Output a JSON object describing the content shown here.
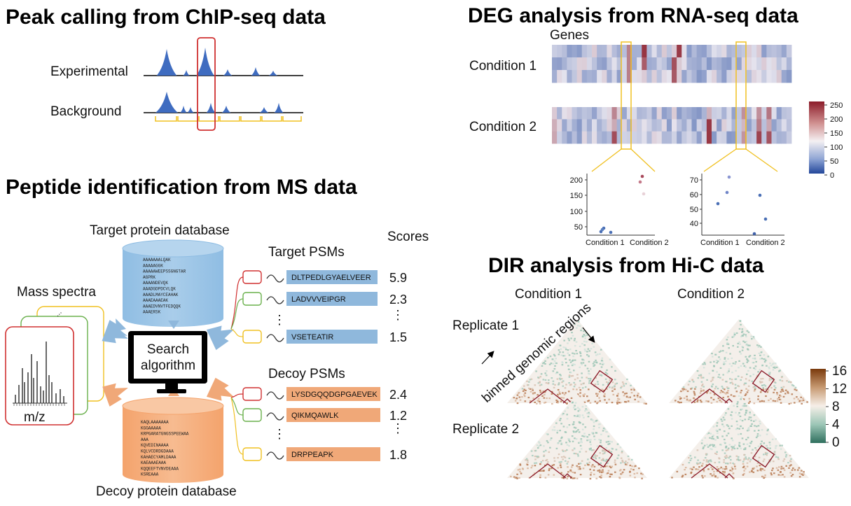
{
  "sections": {
    "chip": {
      "title": "Peak calling from ChIP-seq data",
      "experimental_label": "Experimental",
      "background_label": "Background"
    },
    "deg": {
      "title": "DEG analysis from RNA-seq data",
      "genes_label": "Genes",
      "condition1_label": "Condition 1",
      "condition2_label": "Condition 2",
      "colorbar_ticks": [
        "250",
        "200",
        "150",
        "100",
        "50",
        "0"
      ],
      "scatter1": {
        "y_ticks": [
          "200",
          "150",
          "100",
          "50"
        ],
        "x_labels": [
          "Condition 1",
          "Condition 2"
        ]
      },
      "scatter2": {
        "y_ticks": [
          "70",
          "60",
          "50",
          "40"
        ],
        "x_labels": [
          "Condition 1",
          "Condition 2"
        ]
      }
    },
    "ms": {
      "title": "Peptide identification from MS data",
      "target_db_label": "Target protein database",
      "decoy_db_label": "Decoy protein database",
      "mass_spectra_label": "Mass spectra",
      "mz_label": "m/z",
      "search_label_1": "Search",
      "search_label_2": "algorithm",
      "scores_label": "Scores",
      "target_psms_label": "Target PSMs",
      "decoy_psms_label": "Decoy PSMs",
      "target_db_seqs": [
        "AAAAAAALQAK",
        "AAAAAGGK",
        "AAAAAWEEPSSGNGTAR",
        "AGPRK",
        "AAAANDEVQK",
        "AAADGDPDCVLQK",
        "AAADLMAYCEAHAK",
        "AAAEAAAEAK",
        "AAAEDVNVTFEDQQK",
        "AAAERSK"
      ],
      "decoy_db_seqs": [
        "KAQLAAAAAAA",
        "KGGAAAAA",
        "KRPGARATGNGSSPEEWAA",
        "AAA",
        "KQVEDINAAAA",
        "KQLVCDRDGDAAA",
        "KAHAECYAMLDAAA",
        "KAEAAAEAAA",
        "KQQEEFTVNVDEAAA",
        "KSREAAA"
      ],
      "target_psms": [
        {
          "seq": "DLTPEDLGYAELVEER",
          "score": "5.9"
        },
        {
          "seq": "LADVVVEIPGR",
          "score": "2.3"
        },
        {
          "seq": "VSETEATIR",
          "score": "1.5"
        }
      ],
      "decoy_psms": [
        {
          "seq": "LYSDGQQDGPGAEVEK",
          "score": "2.4"
        },
        {
          "seq": "QIKMQAWLK",
          "score": "1.2"
        },
        {
          "seq": "DRPPEAPK",
          "score": "1.8"
        }
      ],
      "vdots": "⋮",
      "hdots": "..."
    },
    "hic": {
      "title": "DIR analysis from Hi-C data",
      "condition1_label": "Condition 1",
      "condition2_label": "Condition 2",
      "replicate1_label": "Replicate 1",
      "replicate2_label": "Replicate 2",
      "binned_label": "binned genomic regions",
      "colorbar_ticks": [
        "16",
        "12",
        "8",
        "4",
        "0"
      ]
    }
  },
  "colors": {
    "peak_blue": "#3f6cc0",
    "highlight_red": "#d03030",
    "bracket_yellow": "#f0c020",
    "target_blue": "#8fb8dc",
    "decoy_orange": "#f0a878",
    "heat_blue": "#3a5ba8",
    "heat_red": "#8c1c2a",
    "hic_brown": "#8a4a14",
    "hic_teal": "#2f6f5e",
    "green": "#6ab04c"
  }
}
